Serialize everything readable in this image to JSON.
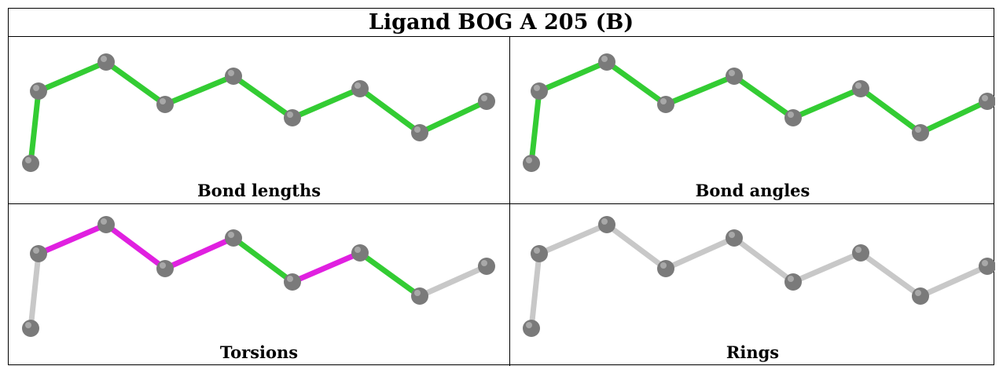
{
  "title": "Ligand BOG A 205 (B)",
  "colors": {
    "green": "#33cc33",
    "magenta": "#e020e0",
    "gray_bond": "#c8c8c8",
    "atom": "#7a7a7a"
  },
  "panels": [
    {
      "caption": "Bond lengths",
      "bond_colors": [
        "green",
        "green",
        "green",
        "green",
        "green",
        "green",
        "green",
        "green"
      ]
    },
    {
      "caption": "Bond angles",
      "bond_colors": [
        "green",
        "green",
        "green",
        "green",
        "green",
        "green",
        "green",
        "green"
      ]
    },
    {
      "caption": "Torsions",
      "bond_colors": [
        "gray_bond",
        "magenta",
        "magenta",
        "magenta",
        "green",
        "magenta",
        "green",
        "gray_bond"
      ]
    },
    {
      "caption": "Rings",
      "bond_colors": [
        "gray_bond",
        "gray_bond",
        "gray_bond",
        "gray_bond",
        "gray_bond",
        "gray_bond",
        "gray_bond",
        "gray_bond"
      ]
    }
  ]
}
